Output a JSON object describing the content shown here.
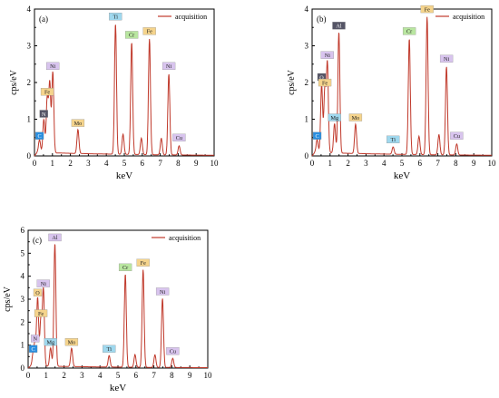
{
  "colors": {
    "spectrum": "#c0392b",
    "axis": "#000000",
    "tag_green": "#b9e6a0",
    "tag_purple": "#d8c4ee",
    "tag_orange": "#f5d48c",
    "tag_blue": "#9fd8ee",
    "tag_dark": "#555566",
    "tag_bright_blue": "#2a8fe0"
  },
  "chart_data": [
    {
      "type": "line",
      "panel_label": "(a)",
      "xlabel": "keV",
      "ylabel": "cps/eV",
      "xlim": [
        0,
        10
      ],
      "ylim": [
        0,
        4
      ],
      "xticks": [
        "0",
        "1",
        "2",
        "3",
        "4",
        "5",
        "6",
        "7",
        "8",
        "9",
        "10"
      ],
      "yticks": [
        "0",
        "1",
        "2",
        "3",
        "4"
      ],
      "legend": {
        "label": "acquisition",
        "position": "top-right"
      },
      "baseline": 0.1,
      "series": [
        {
          "name": "acquisition",
          "peaks": [
            {
              "x": 0.28,
              "y": 0.4
            },
            {
              "x": 0.52,
              "y": 0.95
            },
            {
              "x": 0.71,
              "y": 1.55
            },
            {
              "x": 0.85,
              "y": 1.95
            },
            {
              "x": 1.02,
              "y": 2.25
            },
            {
              "x": 2.42,
              "y": 0.7
            },
            {
              "x": 4.51,
              "y": 3.6
            },
            {
              "x": 4.93,
              "y": 0.6
            },
            {
              "x": 5.41,
              "y": 3.1
            },
            {
              "x": 5.95,
              "y": 0.5
            },
            {
              "x": 6.4,
              "y": 3.2
            },
            {
              "x": 7.06,
              "y": 0.5
            },
            {
              "x": 7.48,
              "y": 2.25
            },
            {
              "x": 8.05,
              "y": 0.3
            }
          ]
        }
      ],
      "annotations": [
        {
          "text": "C",
          "x": 0.28,
          "y": 0.4,
          "tag": "bright_blue"
        },
        {
          "text": "N",
          "x": 0.52,
          "y": 1.0,
          "tag": "dark"
        },
        {
          "text": "Fe",
          "x": 0.71,
          "y": 1.6,
          "tag": "orange"
        },
        {
          "text": "Ni",
          "x": 1.02,
          "y": 2.3,
          "tag": "purple"
        },
        {
          "text": "Mo",
          "x": 2.42,
          "y": 0.75,
          "tag": "orange"
        },
        {
          "text": "Ti",
          "x": 4.51,
          "y": 3.65,
          "tag": "blue"
        },
        {
          "text": "Cr",
          "x": 5.41,
          "y": 3.15,
          "tag": "green"
        },
        {
          "text": "Fe",
          "x": 6.4,
          "y": 3.25,
          "tag": "orange"
        },
        {
          "text": "Ni",
          "x": 7.48,
          "y": 2.3,
          "tag": "purple"
        },
        {
          "text": "Cu",
          "x": 8.05,
          "y": 0.35,
          "tag": "purple"
        }
      ]
    },
    {
      "type": "line",
      "panel_label": "(b)",
      "xlabel": "keV",
      "ylabel": "cps/eV",
      "xlim": [
        0,
        10
      ],
      "ylim": [
        0,
        4
      ],
      "xticks": [
        "0",
        "1",
        "2",
        "3",
        "4",
        "5",
        "6",
        "7",
        "8",
        "9",
        "10"
      ],
      "yticks": [
        "0",
        "1",
        "2",
        "3",
        "4"
      ],
      "legend": {
        "label": "acquisition",
        "position": "top-right"
      },
      "baseline": 0.1,
      "series": [
        {
          "name": "acquisition",
          "peaks": [
            {
              "x": 0.28,
              "y": 0.4
            },
            {
              "x": 0.53,
              "y": 1.9
            },
            {
              "x": 0.71,
              "y": 1.8
            },
            {
              "x": 0.85,
              "y": 2.5
            },
            {
              "x": 1.25,
              "y": 0.85
            },
            {
              "x": 1.49,
              "y": 3.35
            },
            {
              "x": 2.42,
              "y": 0.85
            },
            {
              "x": 4.51,
              "y": 0.25
            },
            {
              "x": 5.41,
              "y": 3.2
            },
            {
              "x": 5.95,
              "y": 0.55
            },
            {
              "x": 6.4,
              "y": 3.8
            },
            {
              "x": 7.06,
              "y": 0.6
            },
            {
              "x": 7.48,
              "y": 2.45
            },
            {
              "x": 8.05,
              "y": 0.35
            }
          ]
        }
      ],
      "annotations": [
        {
          "text": "C",
          "x": 0.28,
          "y": 0.4,
          "tag": "bright_blue"
        },
        {
          "text": "O",
          "x": 0.53,
          "y": 2.0,
          "tag": "dark"
        },
        {
          "text": "Fe",
          "x": 0.71,
          "y": 1.85,
          "tag": "orange"
        },
        {
          "text": "Ni",
          "x": 0.85,
          "y": 2.6,
          "tag": "purple"
        },
        {
          "text": "Mg",
          "x": 1.25,
          "y": 0.9,
          "tag": "blue"
        },
        {
          "text": "Al",
          "x": 1.49,
          "y": 3.4,
          "tag": "dark"
        },
        {
          "text": "Mo",
          "x": 2.42,
          "y": 0.9,
          "tag": "orange"
        },
        {
          "text": "Ti",
          "x": 4.51,
          "y": 0.3,
          "tag": "blue"
        },
        {
          "text": "Cr",
          "x": 5.41,
          "y": 3.25,
          "tag": "green"
        },
        {
          "text": "Fe",
          "x": 6.4,
          "y": 3.85,
          "tag": "orange"
        },
        {
          "text": "Ni",
          "x": 7.48,
          "y": 2.5,
          "tag": "purple"
        },
        {
          "text": "Cu",
          "x": 8.05,
          "y": 0.4,
          "tag": "purple"
        }
      ]
    },
    {
      "type": "line",
      "panel_label": "(c)",
      "xlabel": "keV",
      "ylabel": "cps/eV",
      "xlim": [
        0,
        10
      ],
      "ylim": [
        0,
        6
      ],
      "xticks": [
        "0",
        "1",
        "2",
        "3",
        "4",
        "5",
        "6",
        "7",
        "8",
        "9",
        "10"
      ],
      "yticks": [
        "0",
        "1",
        "2",
        "3",
        "4",
        "5",
        "6"
      ],
      "legend": {
        "label": "acquisition",
        "position": "top-right"
      },
      "baseline": 0.1,
      "series": [
        {
          "name": "acquisition",
          "peaks": [
            {
              "x": 0.28,
              "y": 0.6
            },
            {
              "x": 0.39,
              "y": 1.0
            },
            {
              "x": 0.53,
              "y": 3.0
            },
            {
              "x": 0.71,
              "y": 2.1
            },
            {
              "x": 0.85,
              "y": 3.4
            },
            {
              "x": 1.25,
              "y": 0.85
            },
            {
              "x": 1.49,
              "y": 5.4
            },
            {
              "x": 2.42,
              "y": 0.85
            },
            {
              "x": 4.51,
              "y": 0.55
            },
            {
              "x": 5.41,
              "y": 4.1
            },
            {
              "x": 5.95,
              "y": 0.6
            },
            {
              "x": 6.4,
              "y": 4.3
            },
            {
              "x": 7.06,
              "y": 0.6
            },
            {
              "x": 7.48,
              "y": 3.05
            },
            {
              "x": 8.05,
              "y": 0.45
            }
          ]
        }
      ],
      "annotations": [
        {
          "text": "C",
          "x": 0.28,
          "y": 0.6,
          "tag": "bright_blue"
        },
        {
          "text": "N",
          "x": 0.39,
          "y": 1.05,
          "tag": "purple"
        },
        {
          "text": "O",
          "x": 0.53,
          "y": 3.05,
          "tag": "orange"
        },
        {
          "text": "Fe",
          "x": 0.71,
          "y": 2.15,
          "tag": "orange"
        },
        {
          "text": "Ni",
          "x": 0.85,
          "y": 3.45,
          "tag": "purple"
        },
        {
          "text": "Mg",
          "x": 1.25,
          "y": 0.9,
          "tag": "blue"
        },
        {
          "text": "Al",
          "x": 1.49,
          "y": 5.45,
          "tag": "purple"
        },
        {
          "text": "Mo",
          "x": 2.42,
          "y": 0.9,
          "tag": "orange"
        },
        {
          "text": "Ti",
          "x": 4.51,
          "y": 0.6,
          "tag": "blue"
        },
        {
          "text": "Cr",
          "x": 5.41,
          "y": 4.15,
          "tag": "green"
        },
        {
          "text": "Fe",
          "x": 6.4,
          "y": 4.35,
          "tag": "orange"
        },
        {
          "text": "Ni",
          "x": 7.48,
          "y": 3.1,
          "tag": "purple"
        },
        {
          "text": "Cu",
          "x": 8.05,
          "y": 0.5,
          "tag": "purple"
        }
      ]
    }
  ]
}
